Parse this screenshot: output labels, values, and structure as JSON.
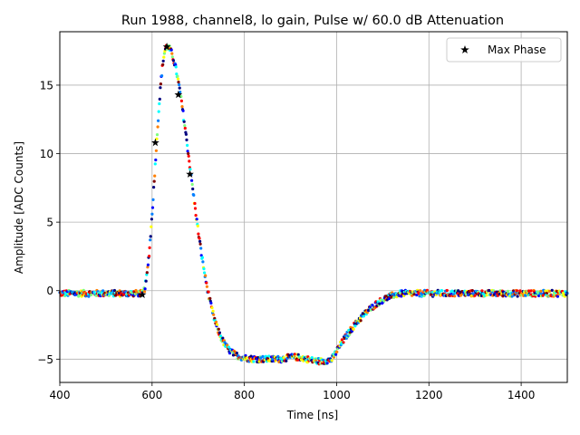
{
  "chart_data": {
    "type": "scatter",
    "title": "Run 1988, channel8, lo gain, Pulse w/ 60.0 dB Attenuation",
    "xlabel": "Time [ns]",
    "ylabel": "Amplitude [ADC Counts]",
    "xlim": [
      400,
      1500
    ],
    "ylim": [
      -6.7,
      18.9
    ],
    "xticks": [
      400,
      600,
      800,
      1000,
      1200,
      1400
    ],
    "yticks": [
      -5,
      0,
      5,
      10,
      15
    ],
    "grid": true,
    "legend": {
      "position": "top-right",
      "entries": [
        "Max Phase"
      ]
    },
    "colormap": [
      "#00007f",
      "#0000ff",
      "#007fff",
      "#00ffff",
      "#7fff7f",
      "#ffff00",
      "#ff7f00",
      "#ff0000",
      "#7f0000"
    ],
    "pulse_model": {
      "baseline": -0.2,
      "rise_start": 578,
      "peak_time": 632,
      "peak_value": 17.8,
      "trough_value": -5.0,
      "trough_start": 880,
      "trough_end": 990,
      "recovery_end": 1150,
      "sample_step_ns": 1.1
    },
    "max_phase": {
      "name": "Max Phase",
      "x": [
        579,
        607,
        632,
        657,
        682
      ],
      "y": [
        -0.3,
        10.8,
        17.8,
        14.3,
        8.5
      ]
    }
  }
}
